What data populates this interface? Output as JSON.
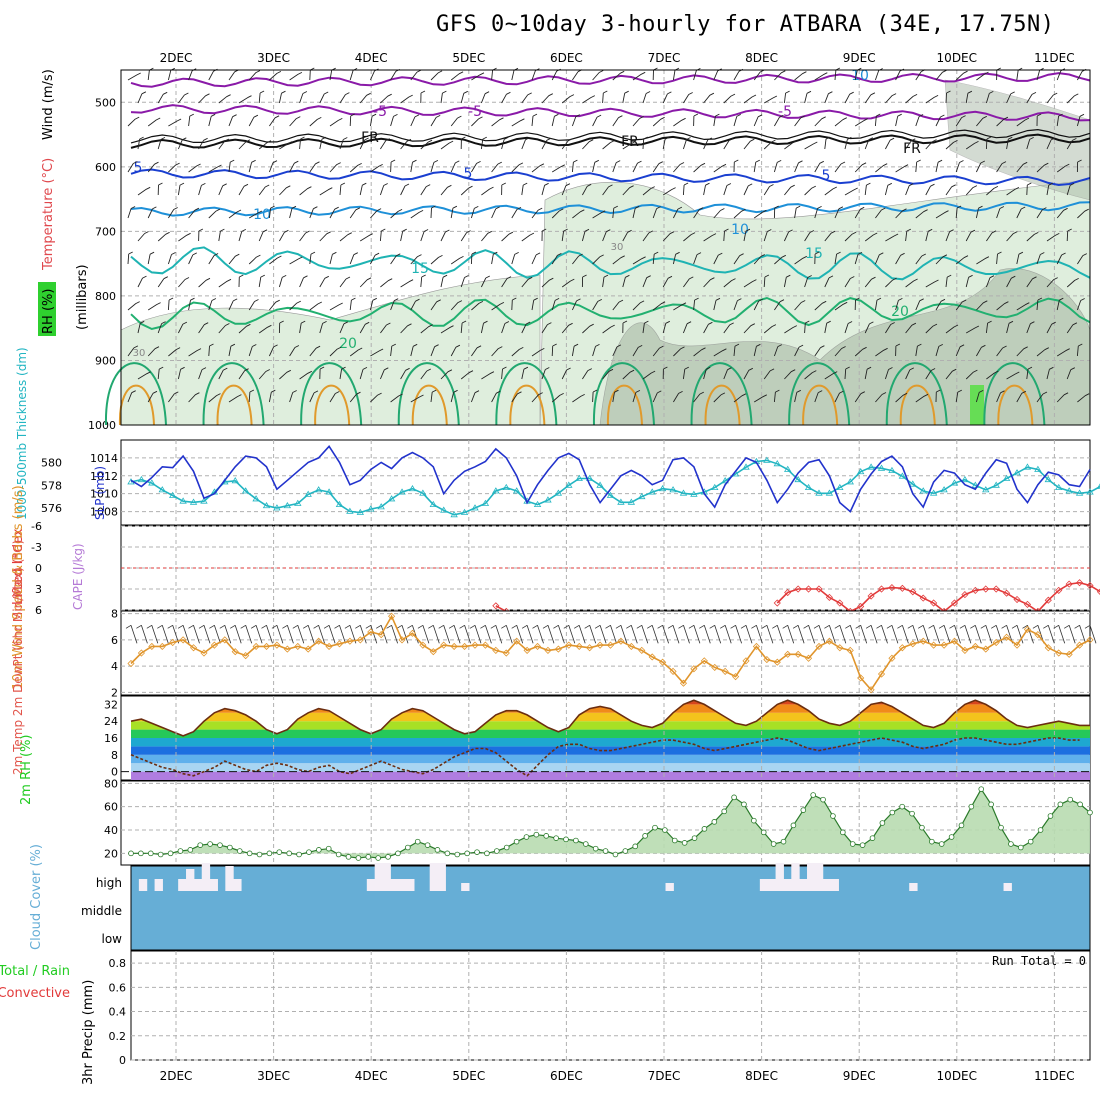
{
  "title": "GFS 0~10day 3-hourly for ATBARA (34E, 17.75N)",
  "colors": {
    "temp_contour_warm": "#e09a2c",
    "temp_contour_cold": "#8a1aa8",
    "temp_contour_mid": "#1a3fd0",
    "rh_fill_light": "#dfeedd",
    "rh_fill_dark": "#a9b9a6",
    "slp": "#2233cc",
    "thickness": "#22b5c2",
    "lifted_index": "#e23a3a",
    "wind_speed": "#e0952c",
    "rh2m": "#22cc22",
    "cloud_bg": "#66aed6",
    "cloud_fill": "#f4eef6"
  },
  "chart_data": [
    {
      "panel": "upper-air",
      "type": "contour",
      "ylabel_parts": [
        "Wind (m/s)",
        "Temperature (°C)",
        "RH (%)"
      ],
      "ylabel_units": "(millibars)",
      "y_ticks": [
        "500",
        "600",
        "700",
        "800",
        "900",
        "1000"
      ],
      "ylim": [
        450,
        1000
      ],
      "x_ticks": [
        "2DEC",
        "3DEC",
        "4DEC",
        "5DEC",
        "6DEC",
        "7DEC",
        "8DEC",
        "9DEC",
        "10DEC",
        "11DEC"
      ],
      "isotherm_labels": [
        "10",
        "-5",
        "-5",
        "-5",
        "FR",
        "FR",
        "FR",
        "5",
        "5",
        "5",
        "10",
        "10",
        "15",
        "15",
        "20",
        "20"
      ],
      "isotherms": [
        {
          "label": "-10",
          "level": 470
        },
        {
          "label": "-5",
          "level": 510
        },
        {
          "label": "FR",
          "level": 565
        },
        {
          "label": "5",
          "level": 610
        },
        {
          "label": "10",
          "level": 670
        },
        {
          "label": "15",
          "level": 745
        },
        {
          "label": "20",
          "level": 830
        }
      ],
      "rh_labels": [
        "30",
        "30"
      ]
    },
    {
      "panel": "slp-thickness",
      "type": "line",
      "ylabel_left": "1000-500mb Thickness (dm)",
      "ylabel_right": "SLP (mb)",
      "ticks_left": [
        "580",
        "578",
        "576"
      ],
      "ticks_right": [
        "1014",
        "1012",
        "1010",
        "1008"
      ],
      "ylim_slp": [
        1006.5,
        1016
      ],
      "ylim_thick": [
        574.5,
        582
      ],
      "series": [
        {
          "name": "SLP (mb)",
          "values": [
            1011.5,
            1010.8,
            1011.8,
            1013,
            1012.9,
            1014.2,
            1012.5,
            1009.5,
            1010,
            1011.5,
            1013,
            1014.2,
            1014,
            1013,
            1010.5,
            1011.5,
            1012.5,
            1013.5,
            1014,
            1015.3,
            1013.5,
            1011,
            1011.5,
            1012.7,
            1013.5,
            1012.8,
            1014,
            1014.6,
            1014,
            1013,
            1010,
            1011.5,
            1012.5,
            1013,
            1013.6,
            1015,
            1014,
            1012,
            1009,
            1011,
            1012.6,
            1014,
            1014.5,
            1013.8,
            1011,
            1009,
            1010.5,
            1012,
            1012.6,
            1012,
            1011,
            1011.5,
            1013.8,
            1014,
            1013,
            1010,
            1008.5,
            1011,
            1012.5,
            1014,
            1013.5,
            1011.5,
            1009,
            1010.5,
            1012.3,
            1013.5,
            1013.8,
            1012,
            1009,
            1008,
            1010.5,
            1012.2,
            1013.6,
            1014.2,
            1013,
            1010,
            1008.5,
            1011.3,
            1012.6,
            1012.3,
            1011,
            1010.5,
            1012.3,
            1013.8,
            1013.4,
            1010.5,
            1009,
            1011,
            1012.4,
            1012.1,
            1011,
            1010.8,
            1012.7
          ]
        },
        {
          "name": "1000-500mb Thickness (dm)",
          "values": [
            578.3,
            578.5,
            578.2,
            577.6,
            577.1,
            576.6,
            576.5,
            576.6,
            577.4,
            578.3,
            578.4,
            577.5,
            576.8,
            576.2,
            576,
            576.2,
            576.4,
            577.2,
            577.6,
            577.4,
            576.3,
            575.7,
            575.6,
            575.9,
            576.1,
            576.8,
            577.4,
            577.7,
            577.3,
            576.3,
            575.8,
            575.4,
            575.6,
            576,
            576.4,
            577.5,
            577.8,
            577.5,
            576.6,
            576.3,
            576.7,
            577.3,
            578,
            578.6,
            578.6,
            578,
            577.1,
            576.5,
            576.5,
            577,
            577.4,
            577.7,
            577.6,
            577.3,
            577.2,
            577.4,
            577.8,
            578.4,
            579,
            579.6,
            580.1,
            580.2,
            579.9,
            579.4,
            578.5,
            577.8,
            577.3,
            577.3,
            577.8,
            578.3,
            579.2,
            579.6,
            579.5,
            579.3,
            578.8,
            578.1,
            577.5,
            577.3,
            577.6,
            578.2,
            578.5,
            578,
            577.6,
            578,
            578.6,
            579.1,
            579.6,
            579.4,
            578.5,
            577.8,
            577.5,
            577.3,
            577.4,
            577.9
          ]
        }
      ]
    },
    {
      "panel": "lifted-index",
      "type": "line",
      "ylabel_left": "Lifted Index",
      "ylabel_right": "CAPE (J/kg)",
      "ticks": [
        "-6",
        "-3",
        "0",
        "3",
        "6"
      ],
      "ylim": [
        -6,
        6
      ],
      "series": [
        {
          "name": "Lifted Index",
          "values": [
            null,
            null,
            null,
            null,
            null,
            null,
            null,
            null,
            null,
            null,
            null,
            null,
            null,
            null,
            null,
            null,
            null,
            null,
            null,
            null,
            null,
            null,
            null,
            null,
            null,
            null,
            null,
            null,
            null,
            null,
            null,
            null,
            null,
            null,
            null,
            5.4,
            6.2,
            null,
            null,
            null,
            null,
            null,
            null,
            null,
            null,
            null,
            null,
            null,
            null,
            null,
            null,
            null,
            null,
            null,
            null,
            null,
            null,
            null,
            null,
            null,
            null,
            null,
            5,
            3.5,
            3,
            3,
            3,
            4.2,
            5,
            6.2,
            5.5,
            4,
            3,
            2.8,
            2.9,
            3.4,
            4.3,
            5,
            6.2,
            5,
            3.8,
            3.2,
            3,
            3,
            3.6,
            4.5,
            5.2,
            6.2,
            4.6,
            3.2,
            2.3,
            2.1,
            2.5,
            3.4,
            4.2,
            5.5,
            4.5
          ]
        }
      ]
    },
    {
      "panel": "wind10m",
      "type": "line",
      "ylabel": "10m Wind Speed & Barbs (m/s)",
      "ticks": [
        "8",
        "6",
        "4",
        "2"
      ],
      "ylim": [
        1.8,
        8.2
      ],
      "series": [
        {
          "name": "10m Wind Speed (m/s)",
          "values": [
            4.2,
            5,
            5.5,
            5.5,
            5.8,
            6,
            5.4,
            5,
            5.6,
            6,
            5.1,
            4.8,
            5.5,
            5.5,
            5.6,
            5.3,
            5.5,
            5.3,
            5.9,
            5.5,
            5.7,
            5.9,
            6,
            6.6,
            6.4,
            7.8,
            6,
            6.5,
            5.6,
            5.1,
            5.6,
            5.5,
            5.5,
            5.6,
            5.6,
            5.2,
            5,
            5.9,
            5.2,
            5.5,
            5.2,
            5.3,
            5.6,
            5.5,
            5.4,
            5.6,
            5.6,
            5.9,
            5.5,
            5.2,
            4.7,
            4.3,
            3.6,
            2.7,
            3.8,
            4.4,
            3.9,
            3.6,
            3.2,
            4.4,
            5.5,
            4.5,
            4.3,
            4.9,
            4.9,
            4.6,
            5.5,
            5.9,
            5.4,
            5.2,
            3.1,
            2.2,
            3.4,
            4.6,
            5.4,
            5.7,
            5.9,
            5.6,
            5.6,
            5.9,
            5.2,
            5.5,
            5.3,
            5.8,
            6.2,
            5.6,
            6.8,
            6.4,
            5.4,
            5,
            4.9,
            5.6,
            6
          ]
        }
      ]
    },
    {
      "panel": "temp2m",
      "type": "area",
      "ylabel": "2m Temp 2m DewPt (6hr Min/Max) (°C)",
      "ticks": [
        "32",
        "24",
        "16",
        "8",
        "0"
      ],
      "ylim": [
        -4,
        36
      ],
      "series": [
        {
          "name": "2m Temp (°C)",
          "values": [
            24,
            25,
            23,
            21,
            19,
            17,
            19,
            24,
            28,
            30,
            29,
            27,
            24,
            20,
            18,
            20,
            25,
            28,
            30,
            29,
            26,
            23,
            20,
            18,
            20,
            25,
            28,
            30,
            29,
            26,
            23,
            20,
            18,
            19,
            23,
            27,
            29,
            29,
            27,
            24,
            21,
            19,
            21,
            27,
            30,
            31,
            30,
            27,
            24,
            22,
            21,
            23,
            28,
            32,
            34,
            32,
            29,
            26,
            23,
            22,
            24,
            28,
            32,
            34,
            32,
            29,
            25,
            23,
            22,
            24,
            28,
            32,
            33,
            31,
            28,
            25,
            22,
            21,
            23,
            28,
            32,
            34,
            32,
            29,
            25,
            22,
            21,
            22,
            23,
            24,
            23,
            22,
            22
          ]
        },
        {
          "name": "2m DewPt (°C)",
          "values": [
            8,
            6,
            4,
            2,
            1,
            -1,
            -2,
            0,
            2,
            5,
            3,
            1,
            0,
            3,
            4,
            3,
            1,
            0,
            2,
            3,
            0,
            -1,
            1,
            3,
            5,
            3,
            1,
            0,
            -1,
            1,
            4,
            7,
            9,
            11,
            11,
            9,
            5,
            1,
            -2,
            3,
            8,
            12,
            13,
            13,
            11,
            10,
            10,
            11,
            12,
            13,
            14,
            15,
            15,
            14,
            13,
            11,
            10,
            11,
            12,
            13,
            14,
            15,
            16,
            15,
            13,
            11,
            10,
            11,
            12,
            13,
            14,
            15,
            16,
            15,
            14,
            12,
            11,
            12,
            13,
            15,
            16,
            16,
            15,
            14,
            13,
            13,
            14,
            15,
            16,
            16,
            15,
            15
          ]
        }
      ]
    },
    {
      "panel": "rh2m",
      "type": "area",
      "ylabel": "2m RH (%)",
      "ticks": [
        "80",
        "60",
        "40",
        "20"
      ],
      "ylim": [
        10,
        82
      ],
      "series": [
        {
          "name": "2m RH (%)",
          "values": [
            20,
            20,
            20,
            19,
            20,
            22,
            23,
            27,
            28,
            27,
            25,
            22,
            20,
            19,
            20,
            21,
            20,
            19,
            21,
            23,
            24,
            19,
            17,
            16,
            17,
            16,
            17,
            20,
            25,
            30,
            27,
            23,
            20,
            19,
            20,
            21,
            20,
            22,
            25,
            30,
            34,
            36,
            35,
            33,
            32,
            31,
            28,
            24,
            22,
            19,
            22,
            26,
            35,
            42,
            40,
            31,
            29,
            33,
            41,
            47,
            56,
            68,
            62,
            48,
            38,
            28,
            30,
            44,
            57,
            70,
            66,
            52,
            38,
            28,
            27,
            33,
            46,
            55,
            60,
            54,
            42,
            30,
            28,
            34,
            44,
            60,
            75,
            62,
            42,
            28,
            25,
            30,
            40,
            52,
            62,
            66,
            62,
            55
          ]
        }
      ]
    },
    {
      "panel": "cloud-cover",
      "type": "bar",
      "ylabel": "Cloud Cover (%)",
      "ticks": [
        "high",
        "middle",
        "low"
      ],
      "series": [
        {
          "name": "high",
          "values": [
            0,
            12,
            0,
            12,
            0,
            0,
            12,
            22,
            12,
            28,
            12,
            0,
            25,
            12,
            0,
            0,
            0,
            0,
            0,
            0,
            0,
            0,
            0,
            0,
            0,
            0,
            0,
            0,
            0,
            0,
            12,
            28,
            28,
            12,
            12,
            12,
            0,
            0,
            28,
            28,
            0,
            0,
            8,
            0,
            0,
            0,
            0,
            0,
            0,
            0,
            0,
            0,
            0,
            0,
            0,
            0,
            0,
            0,
            0,
            0,
            0,
            0,
            0,
            0,
            0,
            0,
            0,
            0,
            8,
            0,
            0,
            0,
            0,
            0,
            0,
            0,
            0,
            0,
            0,
            0,
            12,
            12,
            28,
            12,
            28,
            12,
            28,
            28,
            12,
            12,
            0,
            0,
            0,
            0,
            0,
            0,
            0,
            0,
            0,
            8,
            0,
            0,
            0,
            0,
            0,
            0,
            0,
            0,
            0,
            0,
            0,
            8,
            0,
            0,
            0,
            0,
            0,
            0,
            0,
            0,
            0,
            0
          ]
        }
      ]
    },
    {
      "panel": "precip",
      "type": "bar",
      "ylabel_left": "Total / Rain",
      "ylabel_left2": "Convective",
      "ylabel": "3hr Precip (mm)",
      "ticks": [
        "0.8",
        "0.6",
        "0.4",
        "0.2",
        "0"
      ],
      "ylim": [
        0,
        0.9
      ],
      "run_total": "Run Total = 0",
      "values": []
    }
  ]
}
